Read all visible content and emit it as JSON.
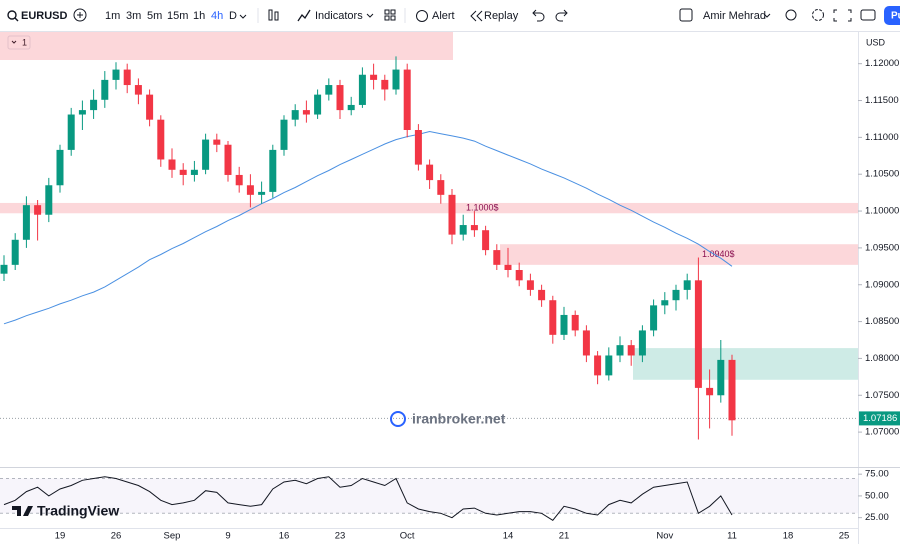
{
  "toolbar": {
    "symbol": "EURUSD",
    "intervals": [
      "1m",
      "3m",
      "5m",
      "15m",
      "1h",
      "4h",
      "D"
    ],
    "indicators": "Indicators",
    "alert": "Alert",
    "replay": "Replay",
    "user": "Amir Mehrad",
    "publish": "Pu"
  },
  "chart_data": {
    "type": "candlestick",
    "currency": "USD",
    "pane_label": "1",
    "watermark": "iranbroker.net",
    "logo": "TradingView",
    "up_color": "#089981",
    "down_color": "#f23645",
    "categories": [
      null,
      null,
      null,
      null,
      null,
      "19",
      null,
      null,
      null,
      null,
      "26",
      null,
      null,
      null,
      null,
      "Sep",
      null,
      null,
      null,
      null,
      "9",
      null,
      null,
      null,
      null,
      "16",
      null,
      null,
      null,
      null,
      "23",
      null,
      null,
      null,
      null,
      null,
      "Oct",
      null,
      null,
      null,
      null,
      null,
      null,
      null,
      null,
      "14",
      null,
      null,
      null,
      null,
      "21",
      null,
      null,
      null,
      null,
      null,
      null,
      null,
      null,
      "Nov",
      null,
      null,
      null,
      null,
      null,
      "11",
      null,
      null,
      null,
      null,
      "18",
      null,
      null,
      null,
      null,
      "25",
      null
    ],
    "candles": [
      [
        1.0915,
        1.094,
        1.0905,
        1.0927
      ],
      [
        1.0927,
        1.097,
        1.092,
        1.0961
      ],
      [
        1.0961,
        1.102,
        1.095,
        1.1008
      ],
      [
        1.1008,
        1.1015,
        1.096,
        1.0995
      ],
      [
        1.0995,
        1.1045,
        1.0985,
        1.1035
      ],
      [
        1.1035,
        1.109,
        1.1025,
        1.1083
      ],
      [
        1.1083,
        1.114,
        1.1075,
        1.1131
      ],
      [
        1.1131,
        1.115,
        1.111,
        1.1137
      ],
      [
        1.1137,
        1.1165,
        1.1125,
        1.1151
      ],
      [
        1.1151,
        1.119,
        1.114,
        1.1178
      ],
      [
        1.1178,
        1.1202,
        1.1165,
        1.1192
      ],
      [
        1.1192,
        1.12,
        1.116,
        1.1171
      ],
      [
        1.1171,
        1.118,
        1.1145,
        1.1158
      ],
      [
        1.1158,
        1.1165,
        1.1115,
        1.1124
      ],
      [
        1.1124,
        1.113,
        1.106,
        1.107
      ],
      [
        1.107,
        1.1085,
        1.1045,
        1.1056
      ],
      [
        1.1056,
        1.1065,
        1.1035,
        1.1049
      ],
      [
        1.1049,
        1.1068,
        1.104,
        1.1056
      ],
      [
        1.1056,
        1.1105,
        1.105,
        1.1097
      ],
      [
        1.1097,
        1.1105,
        1.108,
        1.109
      ],
      [
        1.109,
        1.1095,
        1.104,
        1.1049
      ],
      [
        1.1049,
        1.106,
        1.1025,
        1.1035
      ],
      [
        1.1035,
        1.105,
        1.1005,
        1.1022
      ],
      [
        1.1022,
        1.104,
        1.101,
        1.1026
      ],
      [
        1.1026,
        1.109,
        1.1018,
        1.1083
      ],
      [
        1.1083,
        1.113,
        1.1075,
        1.1124
      ],
      [
        1.1124,
        1.1145,
        1.1115,
        1.1137
      ],
      [
        1.1137,
        1.115,
        1.112,
        1.1131
      ],
      [
        1.1131,
        1.1165,
        1.1125,
        1.1158
      ],
      [
        1.1158,
        1.118,
        1.115,
        1.1171
      ],
      [
        1.1171,
        1.1178,
        1.1125,
        1.1137
      ],
      [
        1.1137,
        1.1155,
        1.113,
        1.1144
      ],
      [
        1.1144,
        1.1195,
        1.114,
        1.1185
      ],
      [
        1.1185,
        1.12,
        1.1165,
        1.1178
      ],
      [
        1.1178,
        1.1185,
        1.115,
        1.1165
      ],
      [
        1.1165,
        1.121,
        1.1158,
        1.1192
      ],
      [
        1.1192,
        1.12,
        1.11,
        1.111
      ],
      [
        1.111,
        1.1118,
        1.1055,
        1.1063
      ],
      [
        1.1063,
        1.107,
        1.103,
        1.1042
      ],
      [
        1.1042,
        1.105,
        1.101,
        1.1022
      ],
      [
        1.1022,
        1.103,
        1.0955,
        1.0968
      ],
      [
        1.0968,
        1.0995,
        1.096,
        1.0981
      ],
      [
        1.0981,
        1.1,
        1.0965,
        1.0974
      ],
      [
        1.0974,
        1.098,
        1.094,
        1.0947
      ],
      [
        1.0947,
        1.0955,
        1.092,
        1.0927
      ],
      [
        1.0927,
        1.095,
        1.091,
        1.092
      ],
      [
        1.092,
        1.093,
        1.0898,
        1.0906
      ],
      [
        1.0906,
        1.0915,
        1.0885,
        1.0893
      ],
      [
        1.0893,
        1.09,
        1.087,
        1.0879
      ],
      [
        1.0879,
        1.0885,
        1.082,
        1.0832
      ],
      [
        1.0832,
        1.087,
        1.0825,
        1.0859
      ],
      [
        1.0859,
        1.0865,
        1.083,
        1.0838
      ],
      [
        1.0838,
        1.0845,
        1.0795,
        1.0804
      ],
      [
        1.0804,
        1.081,
        1.0765,
        1.0777
      ],
      [
        1.0777,
        1.0815,
        1.077,
        1.0804
      ],
      [
        1.0804,
        1.083,
        1.0795,
        1.0818
      ],
      [
        1.0818,
        1.0825,
        1.079,
        1.0804
      ],
      [
        1.0804,
        1.0845,
        1.0795,
        1.0838
      ],
      [
        1.0838,
        1.088,
        1.083,
        1.0872
      ],
      [
        1.0872,
        1.089,
        1.086,
        1.0879
      ],
      [
        1.0879,
        1.09,
        1.0865,
        1.0893
      ],
      [
        1.0893,
        1.0915,
        1.088,
        1.0906
      ],
      [
        1.0906,
        1.0937,
        1.069,
        1.076
      ],
      [
        1.076,
        1.0785,
        1.0705,
        1.075
      ],
      [
        1.075,
        1.0825,
        1.074,
        1.0798
      ],
      [
        1.0798,
        1.0805,
        1.0695,
        1.0716
      ],
      null,
      null,
      null,
      null,
      null,
      null,
      null,
      null,
      null,
      null,
      null
    ],
    "ylim": [
      1.0654,
      1.1243
    ],
    "yticks": [
      {
        "value": 1.07,
        "label": "1.07000"
      },
      {
        "value": 1.075,
        "label": "1.07500"
      },
      {
        "value": 1.08,
        "label": "1.08000"
      },
      {
        "value": 1.085,
        "label": "1.08500"
      },
      {
        "value": 1.09,
        "label": "1.09000"
      },
      {
        "value": 1.095,
        "label": "1.09500"
      },
      {
        "value": 1.1,
        "label": "1.10000"
      },
      {
        "value": 1.105,
        "label": "1.10500"
      },
      {
        "value": 1.11,
        "label": "1.11000"
      },
      {
        "value": 1.115,
        "label": "1.11500"
      },
      {
        "value": 1.12,
        "label": "1.12000"
      }
    ],
    "moving_average": {
      "color": "#4a90e2",
      "values": [
        1.0847,
        1.0852,
        1.0858,
        1.0863,
        1.0868,
        1.0874,
        1.0879,
        1.0885,
        1.089,
        1.0897,
        1.0906,
        1.0915,
        1.0924,
        1.0934,
        1.0941,
        1.0949,
        1.0956,
        1.0964,
        1.0972,
        1.0979,
        1.0987,
        1.0994,
        1.1002,
        1.101,
        1.1017,
        1.1025,
        1.1032,
        1.104,
        1.1048,
        1.1055,
        1.1063,
        1.107,
        1.1077,
        1.1084,
        1.1091,
        1.1097,
        1.1101,
        1.1104,
        1.1108,
        1.1105,
        1.1102,
        1.1099,
        1.1095,
        1.1088,
        1.1082,
        1.1076,
        1.107,
        1.1064,
        1.1057,
        1.1051,
        1.1045,
        1.1038,
        1.1031,
        1.1023,
        1.1016,
        1.1008,
        1.1001,
        1.0993,
        1.0985,
        1.0978,
        1.097,
        1.0963,
        1.0955,
        1.0945,
        1.0936,
        1.0925,
        null,
        null,
        null,
        null,
        null,
        null,
        null,
        null,
        null,
        null,
        null
      ]
    },
    "last_price": 1.07186,
    "zones": [
      {
        "range": [
          1.1205,
          1.1243
        ],
        "color": "#f23645"
      },
      {
        "range": [
          1.0997,
          1.1011
        ],
        "color": "#f23645",
        "label": "1.1000$"
      },
      {
        "range": [
          1.0927,
          1.0955
        ],
        "color": "#f23645",
        "label": "1.0940$"
      },
      {
        "range": [
          1.0771,
          1.0814
        ],
        "color": "#089981"
      }
    ],
    "rsi": {
      "values": [
        40,
        45,
        55,
        60,
        50,
        58,
        62,
        68,
        70,
        72,
        70,
        66,
        62,
        55,
        45,
        40,
        42,
        45,
        56,
        54,
        42,
        40,
        38,
        40,
        58,
        66,
        68,
        64,
        70,
        72,
        60,
        62,
        70,
        66,
        62,
        70,
        42,
        35,
        32,
        30,
        25,
        35,
        36,
        30,
        28,
        30,
        32,
        32,
        30,
        22,
        38,
        35,
        30,
        28,
        40,
        45,
        42,
        52,
        60,
        62,
        64,
        66,
        30,
        38,
        50,
        28,
        null,
        null,
        null,
        null,
        null,
        null,
        null,
        null,
        null,
        null,
        null
      ],
      "ylim": [
        13.1,
        82.1
      ],
      "band": [
        30,
        70
      ],
      "yticks": [
        {
          "value": 25,
          "label": "25.00"
        },
        {
          "value": 50,
          "label": "50.00"
        },
        {
          "value": 75,
          "label": "75.00"
        }
      ]
    }
  }
}
